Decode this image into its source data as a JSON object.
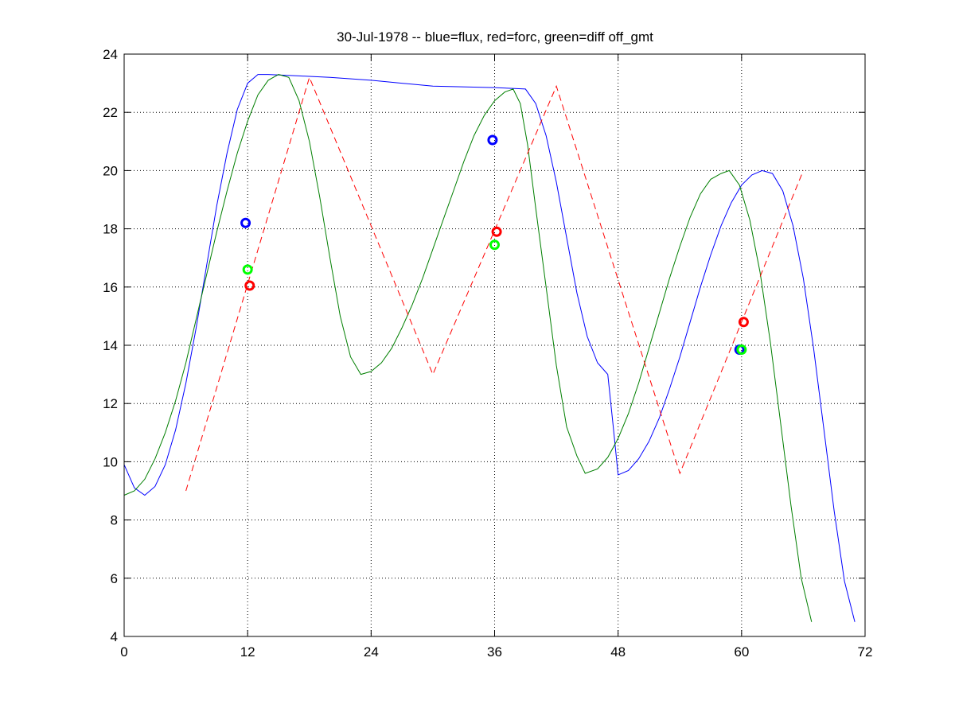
{
  "chart_data": {
    "type": "line",
    "title": "30-Jul-1978 -- blue=flux, red=forc, green=diff off_gmt",
    "xlabel": "",
    "ylabel": "",
    "xlim": [
      0,
      72
    ],
    "ylim": [
      4,
      24
    ],
    "x_ticks": [
      0,
      12,
      24,
      36,
      48,
      60,
      72
    ],
    "y_ticks": [
      4,
      6,
      8,
      10,
      12,
      14,
      16,
      18,
      20,
      22,
      24
    ],
    "x_tick_labels": [
      "0",
      "12",
      "24",
      "36",
      "48",
      "60",
      "72"
    ],
    "y_tick_labels": [
      "4",
      "6",
      "8",
      "10",
      "12",
      "14",
      "16",
      "18",
      "20",
      "22",
      "24"
    ],
    "grid": true,
    "colors": {
      "flux": "#0000ff",
      "forc": "#ff0000",
      "diff": "#007f00",
      "diff_marker": "#00ff00"
    },
    "series": [
      {
        "key": "flux",
        "style": "solid",
        "color": "#0000ff",
        "points": [
          [
            0,
            9.9
          ],
          [
            1,
            9.1
          ],
          [
            2,
            8.85
          ],
          [
            3,
            9.15
          ],
          [
            4,
            9.9
          ],
          [
            5,
            11.1
          ],
          [
            6,
            12.7
          ],
          [
            7,
            14.6
          ],
          [
            8,
            16.7
          ],
          [
            9,
            18.8
          ],
          [
            10,
            20.6
          ],
          [
            11,
            22.1
          ],
          [
            12,
            23.0
          ],
          [
            13,
            23.3
          ],
          [
            14,
            23.3
          ],
          [
            17,
            23.25
          ],
          [
            20,
            23.2
          ],
          [
            24,
            23.1
          ],
          [
            30,
            22.9
          ],
          [
            36,
            22.85
          ],
          [
            39,
            22.8
          ],
          [
            40,
            22.3
          ],
          [
            41,
            21.2
          ],
          [
            42,
            19.6
          ],
          [
            43,
            17.7
          ],
          [
            44,
            15.8
          ],
          [
            45,
            14.3
          ],
          [
            46,
            13.4
          ],
          [
            47,
            13.0
          ],
          [
            47.5,
            11.3
          ],
          [
            48,
            9.55
          ],
          [
            49,
            9.7
          ],
          [
            50,
            10.1
          ],
          [
            51,
            10.7
          ],
          [
            52,
            11.5
          ],
          [
            53,
            12.5
          ],
          [
            54,
            13.6
          ],
          [
            55,
            14.8
          ],
          [
            56,
            16.0
          ],
          [
            57,
            17.1
          ],
          [
            58,
            18.1
          ],
          [
            59,
            18.9
          ],
          [
            60,
            19.5
          ],
          [
            61,
            19.85
          ],
          [
            62,
            20.0
          ],
          [
            63,
            19.9
          ],
          [
            64,
            19.3
          ],
          [
            65,
            18.1
          ],
          [
            66,
            16.3
          ],
          [
            67,
            13.9
          ],
          [
            68,
            11.1
          ],
          [
            69,
            8.3
          ],
          [
            70,
            5.9
          ],
          [
            71,
            4.5
          ]
        ]
      },
      {
        "key": "diff",
        "style": "solid",
        "color": "#007f00",
        "points": [
          [
            0,
            8.85
          ],
          [
            1,
            9.0
          ],
          [
            2,
            9.4
          ],
          [
            3,
            10.1
          ],
          [
            4,
            11.0
          ],
          [
            5,
            12.1
          ],
          [
            6,
            13.4
          ],
          [
            7,
            14.9
          ],
          [
            8,
            16.4
          ],
          [
            9,
            17.9
          ],
          [
            10,
            19.3
          ],
          [
            11,
            20.6
          ],
          [
            12,
            21.7
          ],
          [
            13,
            22.6
          ],
          [
            14,
            23.1
          ],
          [
            15,
            23.3
          ],
          [
            16,
            23.2
          ],
          [
            17,
            22.4
          ],
          [
            18,
            21.0
          ],
          [
            19,
            19.1
          ],
          [
            20,
            17.0
          ],
          [
            21,
            15.0
          ],
          [
            22,
            13.6
          ],
          [
            23,
            13.0
          ],
          [
            24,
            13.1
          ],
          [
            25,
            13.4
          ],
          [
            26,
            13.9
          ],
          [
            27,
            14.6
          ],
          [
            28,
            15.4
          ],
          [
            29,
            16.3
          ],
          [
            30,
            17.3
          ],
          [
            31,
            18.3
          ],
          [
            32,
            19.3
          ],
          [
            33,
            20.3
          ],
          [
            34,
            21.2
          ],
          [
            35,
            21.9
          ],
          [
            36,
            22.4
          ],
          [
            37,
            22.7
          ],
          [
            37.8,
            22.8
          ],
          [
            38.5,
            22.3
          ],
          [
            39.2,
            20.9
          ],
          [
            40,
            18.7
          ],
          [
            41,
            16.0
          ],
          [
            42,
            13.3
          ],
          [
            43,
            11.2
          ],
          [
            44,
            10.2
          ],
          [
            44.8,
            9.6
          ],
          [
            46,
            9.75
          ],
          [
            47,
            10.15
          ],
          [
            48,
            10.8
          ],
          [
            49,
            11.65
          ],
          [
            50,
            12.7
          ],
          [
            51,
            13.9
          ],
          [
            52,
            15.1
          ],
          [
            53,
            16.3
          ],
          [
            54,
            17.4
          ],
          [
            55,
            18.4
          ],
          [
            56,
            19.2
          ],
          [
            57,
            19.7
          ],
          [
            58,
            19.9
          ],
          [
            58.8,
            20.0
          ],
          [
            59.8,
            19.5
          ],
          [
            60.8,
            18.3
          ],
          [
            61.8,
            16.5
          ],
          [
            62.8,
            14.1
          ],
          [
            63.8,
            11.3
          ],
          [
            64.8,
            8.5
          ],
          [
            65.8,
            6.0
          ],
          [
            66.8,
            4.5
          ]
        ]
      },
      {
        "key": "forc",
        "style": "dashed",
        "color": "#ff0000",
        "points": [
          [
            6,
            9.0
          ],
          [
            18,
            23.2
          ],
          [
            30,
            13.0
          ],
          [
            42,
            22.9
          ],
          [
            54,
            9.6
          ],
          [
            66,
            20.0
          ]
        ]
      }
    ],
    "markers": [
      {
        "series": "flux",
        "color": "#0000ff",
        "x": 11.8,
        "y": 18.2
      },
      {
        "series": "diff",
        "color": "#00ff00",
        "x": 12.0,
        "y": 16.6
      },
      {
        "series": "forc",
        "color": "#ff0000",
        "x": 12.2,
        "y": 16.05
      },
      {
        "series": "flux",
        "color": "#0000ff",
        "x": 35.8,
        "y": 21.05
      },
      {
        "series": "forc",
        "color": "#ff0000",
        "x": 36.2,
        "y": 17.9
      },
      {
        "series": "diff",
        "color": "#00ff00",
        "x": 36.0,
        "y": 17.45
      },
      {
        "series": "forc",
        "color": "#ff0000",
        "x": 60.2,
        "y": 14.8
      },
      {
        "series": "flux",
        "color": "#0000ff",
        "x": 59.8,
        "y": 13.85
      },
      {
        "series": "diff",
        "color": "#00ff00",
        "x": 60.0,
        "y": 13.85
      }
    ]
  }
}
